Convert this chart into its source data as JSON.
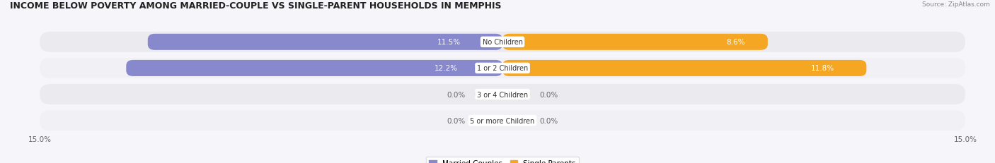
{
  "title": "INCOME BELOW POVERTY AMONG MARRIED-COUPLE VS SINGLE-PARENT HOUSEHOLDS IN MEMPHIS",
  "source": "Source: ZipAtlas.com",
  "categories": [
    "No Children",
    "1 or 2 Children",
    "3 or 4 Children",
    "5 or more Children"
  ],
  "married_values": [
    11.5,
    12.2,
    0.0,
    0.0
  ],
  "single_values": [
    8.6,
    11.8,
    0.0,
    0.0
  ],
  "max_value": 15.0,
  "married_color": "#8888cc",
  "married_color_light": "#bbbbdd",
  "single_color": "#f5a623",
  "single_color_light": "#f5d5a0",
  "married_label": "Married Couples",
  "single_label": "Single Parents",
  "bg_color": "#f5f5fa",
  "row_bg_even": "#eaeaef",
  "row_bg_odd": "#f0f0f5",
  "title_fontsize": 9,
  "label_fontsize": 7.5,
  "tick_fontsize": 7.5,
  "category_fontsize": 7,
  "source_fontsize": 6.5
}
